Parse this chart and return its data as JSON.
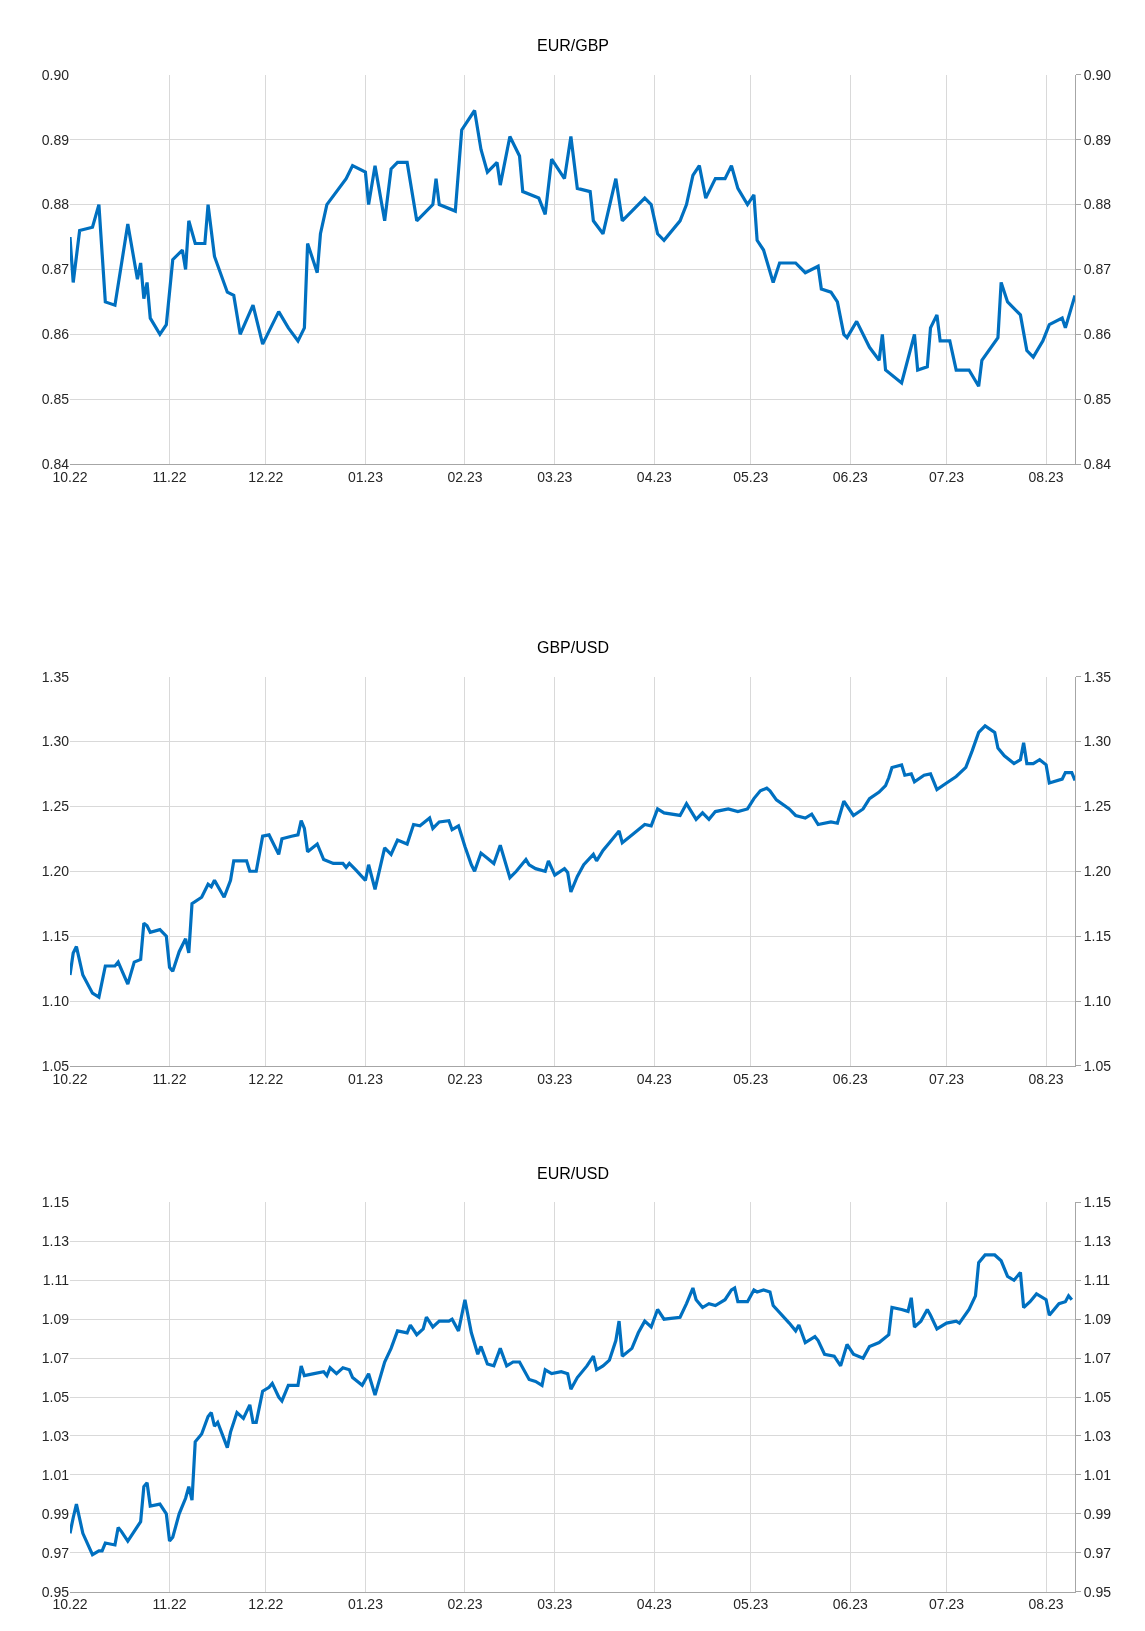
{
  "chart_data": [
    {
      "type": "line",
      "title": "EUR/GBP",
      "grid": true,
      "line_style": "solid",
      "marker": "none",
      "xlim": [
        "2022-10-01",
        "2023-08-10"
      ],
      "xticks": [
        {
          "value": "2022-10-01",
          "label": "10.22"
        },
        {
          "value": "2022-11-01",
          "label": "11.22"
        },
        {
          "value": "2022-12-01",
          "label": "12.22"
        },
        {
          "value": "2023-01-01",
          "label": "01.23"
        },
        {
          "value": "2023-02-01",
          "label": "02.23"
        },
        {
          "value": "2023-03-01",
          "label": "03.23"
        },
        {
          "value": "2023-04-01",
          "label": "04.23"
        },
        {
          "value": "2023-05-01",
          "label": "05.23"
        },
        {
          "value": "2023-06-01",
          "label": "06.23"
        },
        {
          "value": "2023-07-01",
          "label": "07.23"
        },
        {
          "value": "2023-08-01",
          "label": "08.23"
        }
      ],
      "ylim": [
        0.84,
        0.9
      ],
      "yticks": [
        {
          "value": 0.84,
          "label": "0.84"
        },
        {
          "value": 0.85,
          "label": "0.85"
        },
        {
          "value": 0.86,
          "label": "0.86"
        },
        {
          "value": 0.87,
          "label": "0.87"
        },
        {
          "value": 0.88,
          "label": "0.88"
        },
        {
          "value": 0.89,
          "label": "0.89"
        },
        {
          "value": 0.9,
          "label": "0.90"
        }
      ],
      "y2lim": [
        0.84,
        0.9
      ],
      "y2ticks": [
        {
          "value": 0.84,
          "label": "0.84"
        },
        {
          "value": 0.85,
          "label": "0.85"
        },
        {
          "value": 0.86,
          "label": "0.86"
        },
        {
          "value": 0.87,
          "label": "0.87"
        },
        {
          "value": 0.88,
          "label": "0.88"
        },
        {
          "value": 0.89,
          "label": "0.89"
        },
        {
          "value": 0.9,
          "label": "0.90"
        }
      ],
      "series": [
        {
          "color": "#0070c0",
          "x": [
            "2022-10-01",
            "2022-10-02",
            "2022-10-04",
            "2022-10-08",
            "2022-10-10",
            "2022-10-12",
            "2022-10-15",
            "2022-10-19",
            "2022-10-22",
            "2022-10-23",
            "2022-10-24",
            "2022-10-25",
            "2022-10-26",
            "2022-10-29",
            "2022-10-31",
            "2022-11-02",
            "2022-11-05",
            "2022-11-06",
            "2022-11-07",
            "2022-11-09",
            "2022-11-12",
            "2022-11-13",
            "2022-11-15",
            "2022-11-19",
            "2022-11-21",
            "2022-11-23",
            "2022-11-27",
            "2022-11-30",
            "2022-12-05",
            "2022-12-08",
            "2022-12-11",
            "2022-12-13",
            "2022-12-14",
            "2022-12-17",
            "2022-12-18",
            "2022-12-20",
            "2022-12-26",
            "2022-12-28",
            "2023-01-01",
            "2023-01-02",
            "2023-01-04",
            "2023-01-07",
            "2023-01-09",
            "2023-01-11",
            "2023-01-14",
            "2023-01-17",
            "2023-01-22",
            "2023-01-23",
            "2023-01-24",
            "2023-01-29",
            "2023-01-31",
            "2023-02-04",
            "2023-02-06",
            "2023-02-08",
            "2023-02-11",
            "2023-02-12",
            "2023-02-15",
            "2023-02-18",
            "2023-02-19",
            "2023-02-24",
            "2023-02-26",
            "2023-02-28",
            "2023-03-04",
            "2023-03-06",
            "2023-03-08",
            "2023-03-12",
            "2023-03-13",
            "2023-03-16",
            "2023-03-20",
            "2023-03-22",
            "2023-03-25",
            "2023-03-29",
            "2023-03-31",
            "2023-04-02",
            "2023-04-04",
            "2023-04-09",
            "2023-04-11",
            "2023-04-13",
            "2023-04-15",
            "2023-04-17",
            "2023-04-20",
            "2023-04-23",
            "2023-04-25",
            "2023-04-27",
            "2023-04-30",
            "2023-05-02",
            "2023-05-03",
            "2023-05-05",
            "2023-05-08",
            "2023-05-10",
            "2023-05-15",
            "2023-05-18",
            "2023-05-22",
            "2023-05-23",
            "2023-05-26",
            "2023-05-28",
            "2023-05-30",
            "2023-05-31",
            "2023-06-03",
            "2023-06-07",
            "2023-06-10",
            "2023-06-11",
            "2023-06-12",
            "2023-06-17",
            "2023-06-21",
            "2023-06-22",
            "2023-06-25",
            "2023-06-26",
            "2023-06-28",
            "2023-06-29",
            "2023-07-02",
            "2023-07-04",
            "2023-07-08",
            "2023-07-11",
            "2023-07-12",
            "2023-07-17",
            "2023-07-18",
            "2023-07-20",
            "2023-07-24",
            "2023-07-26",
            "2023-07-28",
            "2023-07-31",
            "2023-08-02",
            "2023-08-06",
            "2023-08-07",
            "2023-08-10"
          ],
          "values": [
            0.875,
            0.868,
            0.876,
            0.8765,
            0.88,
            0.865,
            0.8645,
            0.877,
            0.8685,
            0.871,
            0.8655,
            0.868,
            0.8625,
            0.86,
            0.8615,
            0.8715,
            0.873,
            0.87,
            0.8775,
            0.874,
            0.874,
            0.88,
            0.872,
            0.8665,
            0.866,
            0.86,
            0.8645,
            0.8585,
            0.8635,
            0.861,
            0.859,
            0.861,
            0.874,
            0.8695,
            0.8755,
            0.88,
            0.884,
            0.886,
            0.885,
            0.88,
            0.886,
            0.8775,
            0.8855,
            0.8865,
            0.8865,
            0.8775,
            0.88,
            0.884,
            0.88,
            0.879,
            0.8915,
            0.8945,
            0.8885,
            0.885,
            0.8865,
            0.883,
            0.8905,
            0.8875,
            0.882,
            0.881,
            0.8785,
            0.887,
            0.884,
            0.8905,
            0.8825,
            0.882,
            0.8775,
            0.8755,
            0.884,
            0.8775,
            0.879,
            0.881,
            0.88,
            0.8755,
            0.8745,
            0.8775,
            0.88,
            0.8845,
            0.886,
            0.881,
            0.884,
            0.884,
            0.886,
            0.8825,
            0.88,
            0.8815,
            0.8745,
            0.873,
            0.868,
            0.871,
            0.871,
            0.8695,
            0.8705,
            0.867,
            0.8665,
            0.865,
            0.86,
            0.8595,
            0.862,
            0.858,
            0.856,
            0.86,
            0.8545,
            0.8525,
            0.86,
            0.8545,
            0.855,
            0.861,
            0.863,
            0.859,
            0.859,
            0.8545,
            0.8545,
            0.852,
            0.856,
            0.8595,
            0.868,
            0.865,
            0.863,
            0.8575,
            0.8565,
            0.859,
            0.8615,
            0.8625,
            0.861,
            0.866
          ]
        }
      ]
    },
    {
      "type": "line",
      "title": "GBP/USD",
      "grid": true,
      "line_style": "solid",
      "marker": "none",
      "xlim": [
        "2022-10-01",
        "2023-08-10"
      ],
      "xticks": [
        {
          "value": "2022-10-01",
          "label": "10.22"
        },
        {
          "value": "2022-11-01",
          "label": "11.22"
        },
        {
          "value": "2022-12-01",
          "label": "12.22"
        },
        {
          "value": "2023-01-01",
          "label": "01.23"
        },
        {
          "value": "2023-02-01",
          "label": "02.23"
        },
        {
          "value": "2023-03-01",
          "label": "03.23"
        },
        {
          "value": "2023-04-01",
          "label": "04.23"
        },
        {
          "value": "2023-05-01",
          "label": "05.23"
        },
        {
          "value": "2023-06-01",
          "label": "06.23"
        },
        {
          "value": "2023-07-01",
          "label": "07.23"
        },
        {
          "value": "2023-08-01",
          "label": "08.23"
        }
      ],
      "ylim": [
        1.05,
        1.35
      ],
      "yticks": [
        {
          "value": 1.05,
          "label": "1.05"
        },
        {
          "value": 1.1,
          "label": "1.10"
        },
        {
          "value": 1.15,
          "label": "1.15"
        },
        {
          "value": 1.2,
          "label": "1.20"
        },
        {
          "value": 1.25,
          "label": "1.25"
        },
        {
          "value": 1.3,
          "label": "1.30"
        },
        {
          "value": 1.35,
          "label": "1.35"
        }
      ],
      "y2lim": [
        1.05,
        1.35
      ],
      "y2ticks": [
        {
          "value": 1.05,
          "label": "1.05"
        },
        {
          "value": 1.1,
          "label": "1.10"
        },
        {
          "value": 1.15,
          "label": "1.15"
        },
        {
          "value": 1.2,
          "label": "1.20"
        },
        {
          "value": 1.25,
          "label": "1.25"
        },
        {
          "value": 1.3,
          "label": "1.30"
        },
        {
          "value": 1.35,
          "label": "1.35"
        }
      ],
      "series": [
        {
          "color": "#0070c0",
          "x": [
            "2022-10-01",
            "2022-10-02",
            "2022-10-03",
            "2022-10-05",
            "2022-10-08",
            "2022-10-10",
            "2022-10-12",
            "2022-10-15",
            "2022-10-16",
            "2022-10-19",
            "2022-10-21",
            "2022-10-23",
            "2022-10-24",
            "2022-10-25",
            "2022-10-26",
            "2022-10-29",
            "2022-10-31",
            "2022-11-01",
            "2022-11-02",
            "2022-11-04",
            "2022-11-06",
            "2022-11-07",
            "2022-11-08",
            "2022-11-11",
            "2022-11-13",
            "2022-11-14",
            "2022-11-15",
            "2022-11-18",
            "2022-11-20",
            "2022-11-21",
            "2022-11-25",
            "2022-11-26",
            "2022-11-28",
            "2022-11-30",
            "2022-12-02",
            "2022-12-05",
            "2022-12-06",
            "2022-12-09",
            "2022-12-11",
            "2022-12-12",
            "2022-12-13",
            "2022-12-14",
            "2022-12-17",
            "2022-12-19",
            "2022-12-22",
            "2022-12-25",
            "2022-12-26",
            "2022-12-27",
            "2022-12-29",
            "2023-01-01",
            "2023-01-02",
            "2023-01-04",
            "2023-01-07",
            "2023-01-09",
            "2023-01-11",
            "2023-01-14",
            "2023-01-16",
            "2023-01-18",
            "2023-01-21",
            "2023-01-22",
            "2023-01-24",
            "2023-01-27",
            "2023-01-28",
            "2023-01-30",
            "2023-02-01",
            "2023-02-03",
            "2023-02-04",
            "2023-02-06",
            "2023-02-08",
            "2023-02-10",
            "2023-02-12",
            "2023-02-15",
            "2023-02-17",
            "2023-02-20",
            "2023-02-21",
            "2023-02-23",
            "2023-02-26",
            "2023-02-27",
            "2023-03-01",
            "2023-03-04",
            "2023-03-05",
            "2023-03-06",
            "2023-03-08",
            "2023-03-10",
            "2023-03-13",
            "2023-03-14",
            "2023-03-16",
            "2023-03-18",
            "2023-03-21",
            "2023-03-22",
            "2023-03-25",
            "2023-03-29",
            "2023-03-31",
            "2023-04-02",
            "2023-04-04",
            "2023-04-09",
            "2023-04-11",
            "2023-04-14",
            "2023-04-16",
            "2023-04-18",
            "2023-04-20",
            "2023-04-24",
            "2023-04-27",
            "2023-04-30",
            "2023-05-02",
            "2023-05-04",
            "2023-05-06",
            "2023-05-07",
            "2023-05-09",
            "2023-05-13",
            "2023-05-15",
            "2023-05-18",
            "2023-05-20",
            "2023-05-22",
            "2023-05-26",
            "2023-05-28",
            "2023-05-30",
            "2023-06-02",
            "2023-06-05",
            "2023-06-07",
            "2023-06-10",
            "2023-06-12",
            "2023-06-13",
            "2023-06-14",
            "2023-06-17",
            "2023-06-18",
            "2023-06-20",
            "2023-06-21",
            "2023-06-24",
            "2023-06-26",
            "2023-06-27",
            "2023-06-28",
            "2023-07-01",
            "2023-07-04",
            "2023-07-07",
            "2023-07-09",
            "2023-07-11",
            "2023-07-13",
            "2023-07-16",
            "2023-07-17",
            "2023-07-19",
            "2023-07-22",
            "2023-07-24",
            "2023-07-25",
            "2023-07-26",
            "2023-07-28",
            "2023-07-30",
            "2023-08-01",
            "2023-08-02",
            "2023-08-06",
            "2023-08-07",
            "2023-08-09",
            "2023-08-10"
          ],
          "values": [
            1.12,
            1.137,
            1.142,
            1.12,
            1.106,
            1.103,
            1.127,
            1.127,
            1.13,
            1.113,
            1.13,
            1.132,
            1.16,
            1.158,
            1.153,
            1.155,
            1.15,
            1.126,
            1.123,
            1.138,
            1.148,
            1.137,
            1.175,
            1.18,
            1.19,
            1.188,
            1.193,
            1.18,
            1.193,
            1.208,
            1.208,
            1.2,
            1.2,
            1.227,
            1.228,
            1.213,
            1.225,
            1.227,
            1.228,
            1.239,
            1.233,
            1.215,
            1.221,
            1.209,
            1.206,
            1.206,
            1.203,
            1.206,
            1.201,
            1.193,
            1.205,
            1.186,
            1.218,
            1.213,
            1.224,
            1.221,
            1.236,
            1.235,
            1.241,
            1.233,
            1.238,
            1.239,
            1.232,
            1.235,
            1.219,
            1.205,
            1.2,
            1.214,
            1.21,
            1.206,
            1.22,
            1.195,
            1.2,
            1.209,
            1.205,
            1.202,
            1.2,
            1.208,
            1.197,
            1.202,
            1.199,
            1.184,
            1.196,
            1.205,
            1.213,
            1.208,
            1.216,
            1.222,
            1.231,
            1.222,
            1.228,
            1.236,
            1.235,
            1.248,
            1.245,
            1.243,
            1.252,
            1.24,
            1.245,
            1.24,
            1.246,
            1.248,
            1.246,
            1.248,
            1.256,
            1.262,
            1.264,
            1.262,
            1.255,
            1.248,
            1.243,
            1.241,
            1.244,
            1.236,
            1.238,
            1.237,
            1.254,
            1.243,
            1.248,
            1.256,
            1.261,
            1.266,
            1.272,
            1.28,
            1.282,
            1.274,
            1.275,
            1.269,
            1.274,
            1.275,
            1.269,
            1.263,
            1.268,
            1.273,
            1.28,
            1.293,
            1.307,
            1.312,
            1.307,
            1.295,
            1.289,
            1.283,
            1.286,
            1.299,
            1.283,
            1.283,
            1.286,
            1.282,
            1.268,
            1.271,
            1.276,
            1.276,
            1.27
          ]
        }
      ]
    },
    {
      "type": "line",
      "title": "EUR/USD",
      "grid": true,
      "line_style": "solid",
      "marker": "none",
      "xlim": [
        "2022-10-01",
        "2023-08-10"
      ],
      "xticks": [
        {
          "value": "2022-10-01",
          "label": "10.22"
        },
        {
          "value": "2022-11-01",
          "label": "11.22"
        },
        {
          "value": "2022-12-01",
          "label": "12.22"
        },
        {
          "value": "2023-01-01",
          "label": "01.23"
        },
        {
          "value": "2023-02-01",
          "label": "02.23"
        },
        {
          "value": "2023-03-01",
          "label": "03.23"
        },
        {
          "value": "2023-04-01",
          "label": "04.23"
        },
        {
          "value": "2023-05-01",
          "label": "05.23"
        },
        {
          "value": "2023-06-01",
          "label": "06.23"
        },
        {
          "value": "2023-07-01",
          "label": "07.23"
        },
        {
          "value": "2023-08-01",
          "label": "08.23"
        }
      ],
      "ylim": [
        0.95,
        1.15
      ],
      "yticks": [
        0.95,
        0.97,
        0.99,
        1.01,
        1.03,
        1.05,
        1.07,
        1.09,
        1.11,
        1.13,
        1.15
      ],
      "y2lim": [
        0.95,
        1.15
      ],
      "y2ticks": [
        0.95,
        0.97,
        0.99,
        1.01,
        1.03,
        1.05,
        1.07,
        1.09,
        1.11,
        1.13,
        1.15
      ],
      "series": [
        {
          "color": "#0070c0",
          "x": [
            "2022-10-01",
            "2022-10-02",
            "2022-10-03",
            "2022-10-05",
            "2022-10-08",
            "2022-10-10",
            "2022-10-11",
            "2022-10-12",
            "2022-10-15",
            "2022-10-16",
            "2022-10-17",
            "2022-10-19",
            "2022-10-21",
            "2022-10-23",
            "2022-10-24",
            "2022-10-25",
            "2022-10-26",
            "2022-10-29",
            "2022-10-31",
            "2022-11-01",
            "2022-11-02",
            "2022-11-04",
            "2022-11-06",
            "2022-11-07",
            "2022-11-08",
            "2022-11-09",
            "2022-11-11",
            "2022-11-13",
            "2022-11-14",
            "2022-11-15",
            "2022-11-16",
            "2022-11-19",
            "2022-11-20",
            "2022-11-22",
            "2022-11-24",
            "2022-11-26",
            "2022-11-27",
            "2022-11-28",
            "2022-11-30",
            "2022-12-02",
            "2022-12-03",
            "2022-12-05",
            "2022-12-06",
            "2022-12-08",
            "2022-12-11",
            "2022-12-12",
            "2022-12-13",
            "2022-12-16",
            "2022-12-19",
            "2022-12-20",
            "2022-12-21",
            "2022-12-23",
            "2022-12-25",
            "2022-12-27",
            "2022-12-28",
            "2022-12-31",
            "2023-01-02",
            "2023-01-04",
            "2023-01-07",
            "2023-01-09",
            "2023-01-11",
            "2023-01-14",
            "2023-01-15",
            "2023-01-17",
            "2023-01-19",
            "2023-01-20",
            "2023-01-22",
            "2023-01-24",
            "2023-01-27",
            "2023-01-28",
            "2023-01-30",
            "2023-02-01",
            "2023-02-03",
            "2023-02-05",
            "2023-02-06",
            "2023-02-08",
            "2023-02-10",
            "2023-02-12",
            "2023-02-14",
            "2023-02-16",
            "2023-02-18",
            "2023-02-21",
            "2023-02-23",
            "2023-02-25",
            "2023-02-26",
            "2023-02-28",
            "2023-03-03",
            "2023-03-05",
            "2023-03-06",
            "2023-03-08",
            "2023-03-11",
            "2023-03-13",
            "2023-03-14",
            "2023-03-16",
            "2023-03-18",
            "2023-03-20",
            "2023-03-21",
            "2023-03-22",
            "2023-03-25",
            "2023-03-27",
            "2023-03-29",
            "2023-03-31",
            "2023-04-02",
            "2023-04-04",
            "2023-04-09",
            "2023-04-11",
            "2023-04-13",
            "2023-04-14",
            "2023-04-16",
            "2023-04-18",
            "2023-04-20",
            "2023-04-23",
            "2023-04-25",
            "2023-04-26",
            "2023-04-27",
            "2023-04-30",
            "2023-05-02",
            "2023-05-03",
            "2023-05-05",
            "2023-05-07",
            "2023-05-08",
            "2023-05-13",
            "2023-05-15",
            "2023-05-16",
            "2023-05-18",
            "2023-05-21",
            "2023-05-22",
            "2023-05-24",
            "2023-05-27",
            "2023-05-29",
            "2023-05-31",
            "2023-06-02",
            "2023-06-05",
            "2023-06-07",
            "2023-06-10",
            "2023-06-13",
            "2023-06-14",
            "2023-06-17",
            "2023-06-19",
            "2023-06-20",
            "2023-06-21",
            "2023-06-23",
            "2023-06-25",
            "2023-06-26",
            "2023-06-28",
            "2023-07-01",
            "2023-07-04",
            "2023-07-05",
            "2023-07-08",
            "2023-07-10",
            "2023-07-11",
            "2023-07-13",
            "2023-07-16",
            "2023-07-18",
            "2023-07-20",
            "2023-07-22",
            "2023-07-24",
            "2023-07-25",
            "2023-07-27",
            "2023-07-29",
            "2023-08-01",
            "2023-08-02",
            "2023-08-05",
            "2023-08-07",
            "2023-08-08",
            "2023-08-09"
          ],
          "values": [
            0.98,
            0.988,
            0.995,
            0.98,
            0.969,
            0.971,
            0.971,
            0.975,
            0.974,
            0.983,
            0.981,
            0.976,
            0.981,
            0.986,
            1.004,
            1.006,
            0.994,
            0.995,
            0.99,
            0.976,
            0.978,
            0.99,
            0.998,
            1.004,
            0.997,
            1.027,
            1.031,
            1.04,
            1.042,
            1.035,
            1.037,
            1.024,
            1.032,
            1.042,
            1.039,
            1.046,
            1.037,
            1.037,
            1.053,
            1.055,
            1.057,
            1.05,
            1.048,
            1.056,
            1.056,
            1.066,
            1.061,
            1.062,
            1.063,
            1.061,
            1.065,
            1.062,
            1.065,
            1.064,
            1.06,
            1.056,
            1.062,
            1.051,
            1.068,
            1.075,
            1.084,
            1.083,
            1.087,
            1.082,
            1.085,
            1.091,
            1.086,
            1.089,
            1.089,
            1.09,
            1.084,
            1.1,
            1.083,
            1.072,
            1.076,
            1.067,
            1.066,
            1.075,
            1.066,
            1.068,
            1.068,
            1.059,
            1.058,
            1.056,
            1.064,
            1.062,
            1.063,
            1.062,
            1.054,
            1.06,
            1.066,
            1.071,
            1.064,
            1.066,
            1.069,
            1.079,
            1.089,
            1.071,
            1.075,
            1.083,
            1.089,
            1.086,
            1.095,
            1.09,
            1.091,
            1.098,
            1.106,
            1.1,
            1.096,
            1.098,
            1.097,
            1.1,
            1.105,
            1.106,
            1.099,
            1.099,
            1.105,
            1.104,
            1.105,
            1.104,
            1.097,
            1.088,
            1.084,
            1.087,
            1.078,
            1.081,
            1.079,
            1.072,
            1.071,
            1.066,
            1.077,
            1.072,
            1.07,
            1.076,
            1.078,
            1.082,
            1.096,
            1.095,
            1.094,
            1.101,
            1.086,
            1.089,
            1.095,
            1.092,
            1.085,
            1.088,
            1.089,
            1.088,
            1.095,
            1.102,
            1.119,
            1.123,
            1.123,
            1.12,
            1.112,
            1.11,
            1.114,
            1.096,
            1.099,
            1.103,
            1.1,
            1.092,
            1.098,
            1.099,
            1.102,
            1.1
          ]
        }
      ]
    }
  ]
}
